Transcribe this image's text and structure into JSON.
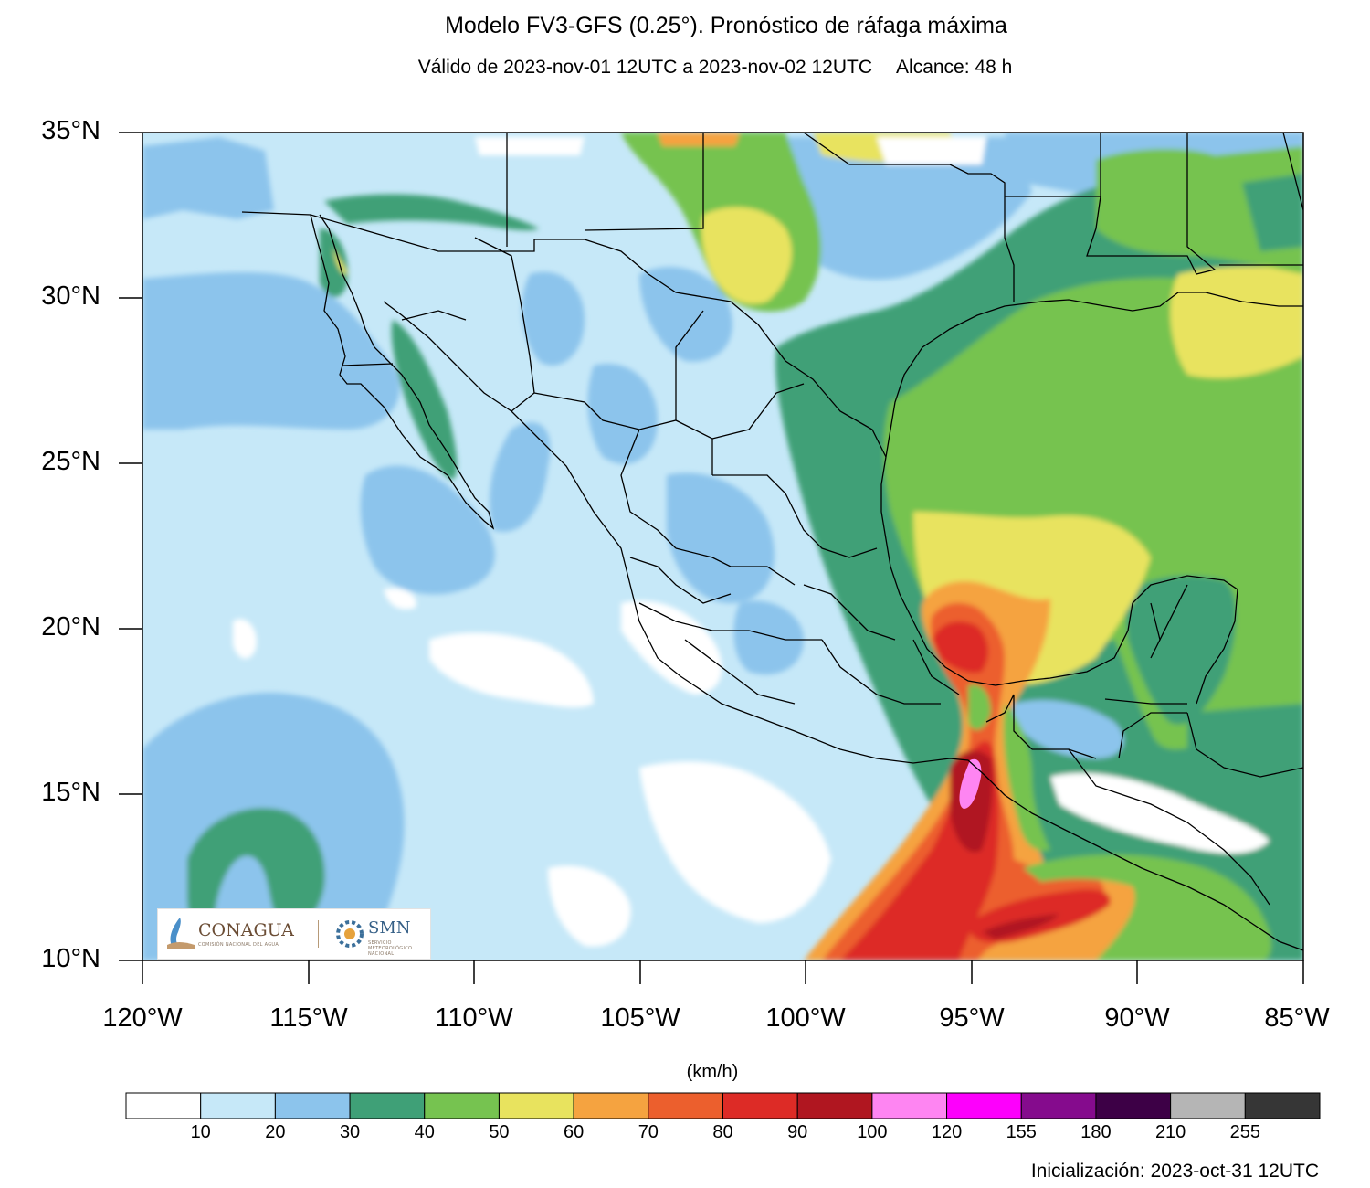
{
  "header": {
    "title": "Modelo FV3-GFS (0.25°). Pronóstico de ráfaga máxima",
    "valid": "Válido de 2023-nov-01 12UTC a 2023-nov-02 12UTC",
    "range": "Alcance: 48 h"
  },
  "axes": {
    "lat_labels": [
      "35°N",
      "30°N",
      "25°N",
      "20°N",
      "15°N",
      "10°N"
    ],
    "lon_labels": [
      "120°W",
      "115°W",
      "110°W",
      "105°W",
      "100°W",
      "95°W",
      "90°W",
      "85°W"
    ]
  },
  "colorbar": {
    "units": "(km/h)",
    "labels": [
      "10",
      "20",
      "30",
      "40",
      "50",
      "60",
      "70",
      "80",
      "90",
      "100",
      "120",
      "155",
      "180",
      "210",
      "255"
    ],
    "colors": [
      "#ffffff",
      "#c6e8f8",
      "#8cc4ec",
      "#3fa077",
      "#76c350",
      "#e8e35e",
      "#f5a340",
      "#ec5f2d",
      "#dd2b26",
      "#b01620",
      "#fe85f2",
      "#fd00fc",
      "#850b8d",
      "#3d0046",
      "#b5b5b5",
      "#363636"
    ]
  },
  "footer": {
    "init": "Inicialización: 2023-oct-31 12UTC"
  },
  "logos": {
    "conagua": "CONAGUA",
    "conagua_sub": "COMISIÓN NACIONAL DEL AGUA",
    "smn": "SMN",
    "smn_sub": "SERVICIO METEOROLÓGICO NACIONAL"
  }
}
